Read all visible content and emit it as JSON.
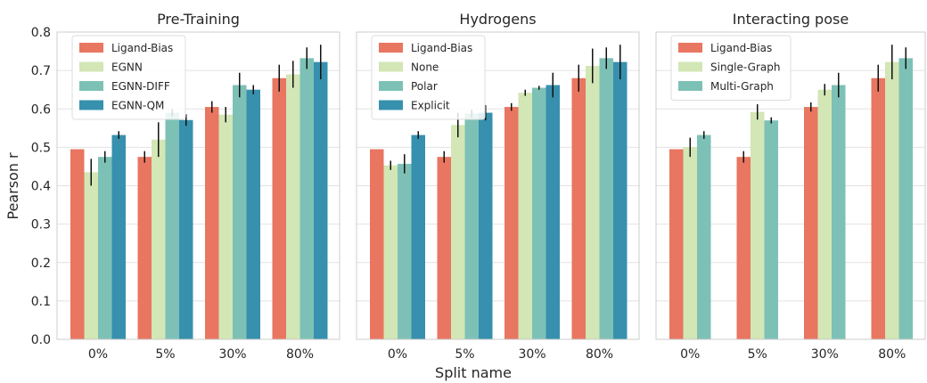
{
  "xlabel": "Split name",
  "ylabel": "Pearson r",
  "colors": {
    "orange": "#E87660",
    "lightgreen": "#D3E6B5",
    "teal": "#7DC1B6",
    "blue": "#3790AE",
    "grid": "#e2e2e2",
    "spine": "#cccccc",
    "errorbar": "#111111"
  },
  "chart_data": [
    {
      "type": "bar",
      "title": "Pre-Training",
      "categories": [
        "0%",
        "5%",
        "30%",
        "80%"
      ],
      "ylim": [
        0,
        0.8
      ],
      "yticks": [
        "0.0",
        "0.1",
        "0.2",
        "0.3",
        "0.4",
        "0.5",
        "0.6",
        "0.7",
        "0.8"
      ],
      "grid": true,
      "legend": "upper-left",
      "series": [
        {
          "name": "Ligand-Bias",
          "color": "#E87660",
          "values": [
            0.495,
            0.475,
            0.605,
            0.68
          ],
          "errors": [
            0,
            0.015,
            0.015,
            0.035
          ]
        },
        {
          "name": "EGNN",
          "color": "#D3E6B5",
          "values": [
            0.435,
            0.52,
            0.585,
            0.69
          ],
          "errors": [
            0.035,
            0.045,
            0.02,
            0.035
          ]
        },
        {
          "name": "EGNN-DIFF",
          "color": "#7DC1B6",
          "values": [
            0.475,
            0.59,
            0.662,
            0.732
          ],
          "errors": [
            0.015,
            0.01,
            0.032,
            0.028
          ]
        },
        {
          "name": "EGNN-QM",
          "color": "#3790AE",
          "values": [
            0.532,
            0.571,
            0.65,
            0.722
          ],
          "errors": [
            0.01,
            0.015,
            0.012,
            0.045
          ]
        }
      ]
    },
    {
      "type": "bar",
      "title": "Hydrogens",
      "categories": [
        "0%",
        "5%",
        "30%",
        "80%"
      ],
      "ylim": [
        0,
        0.8
      ],
      "grid": true,
      "legend": "upper-left",
      "series": [
        {
          "name": "Ligand-Bias",
          "color": "#E87660",
          "values": [
            0.495,
            0.475,
            0.605,
            0.68
          ],
          "errors": [
            0,
            0.015,
            0.01,
            0.035
          ]
        },
        {
          "name": "None",
          "color": "#D3E6B5",
          "values": [
            0.453,
            0.558,
            0.642,
            0.712
          ],
          "errors": [
            0.012,
            0.032,
            0.008,
            0.045
          ]
        },
        {
          "name": "Polar",
          "color": "#7DC1B6",
          "values": [
            0.457,
            0.588,
            0.655,
            0.732
          ],
          "errors": [
            0.025,
            0.01,
            0.005,
            0.028
          ]
        },
        {
          "name": "Explicit",
          "color": "#3790AE",
          "values": [
            0.532,
            0.59,
            0.662,
            0.722
          ],
          "errors": [
            0.01,
            0.02,
            0.032,
            0.045
          ]
        }
      ]
    },
    {
      "type": "bar",
      "title": "Interacting pose",
      "categories": [
        "0%",
        "5%",
        "30%",
        "80%"
      ],
      "ylim": [
        0,
        0.8
      ],
      "grid": true,
      "legend": "upper-left",
      "series": [
        {
          "name": "Ligand-Bias",
          "color": "#E87660",
          "values": [
            0.495,
            0.475,
            0.605,
            0.68
          ],
          "errors": [
            0,
            0.015,
            0.012,
            0.035
          ]
        },
        {
          "name": "Single-Graph",
          "color": "#D3E6B5",
          "values": [
            0.5,
            0.592,
            0.65,
            0.722
          ],
          "errors": [
            0.025,
            0.02,
            0.015,
            0.045
          ]
        },
        {
          "name": "Multi-Graph",
          "color": "#7DC1B6",
          "values": [
            0.532,
            0.57,
            0.662,
            0.732
          ],
          "errors": [
            0.01,
            0.008,
            0.032,
            0.028
          ]
        }
      ]
    }
  ]
}
